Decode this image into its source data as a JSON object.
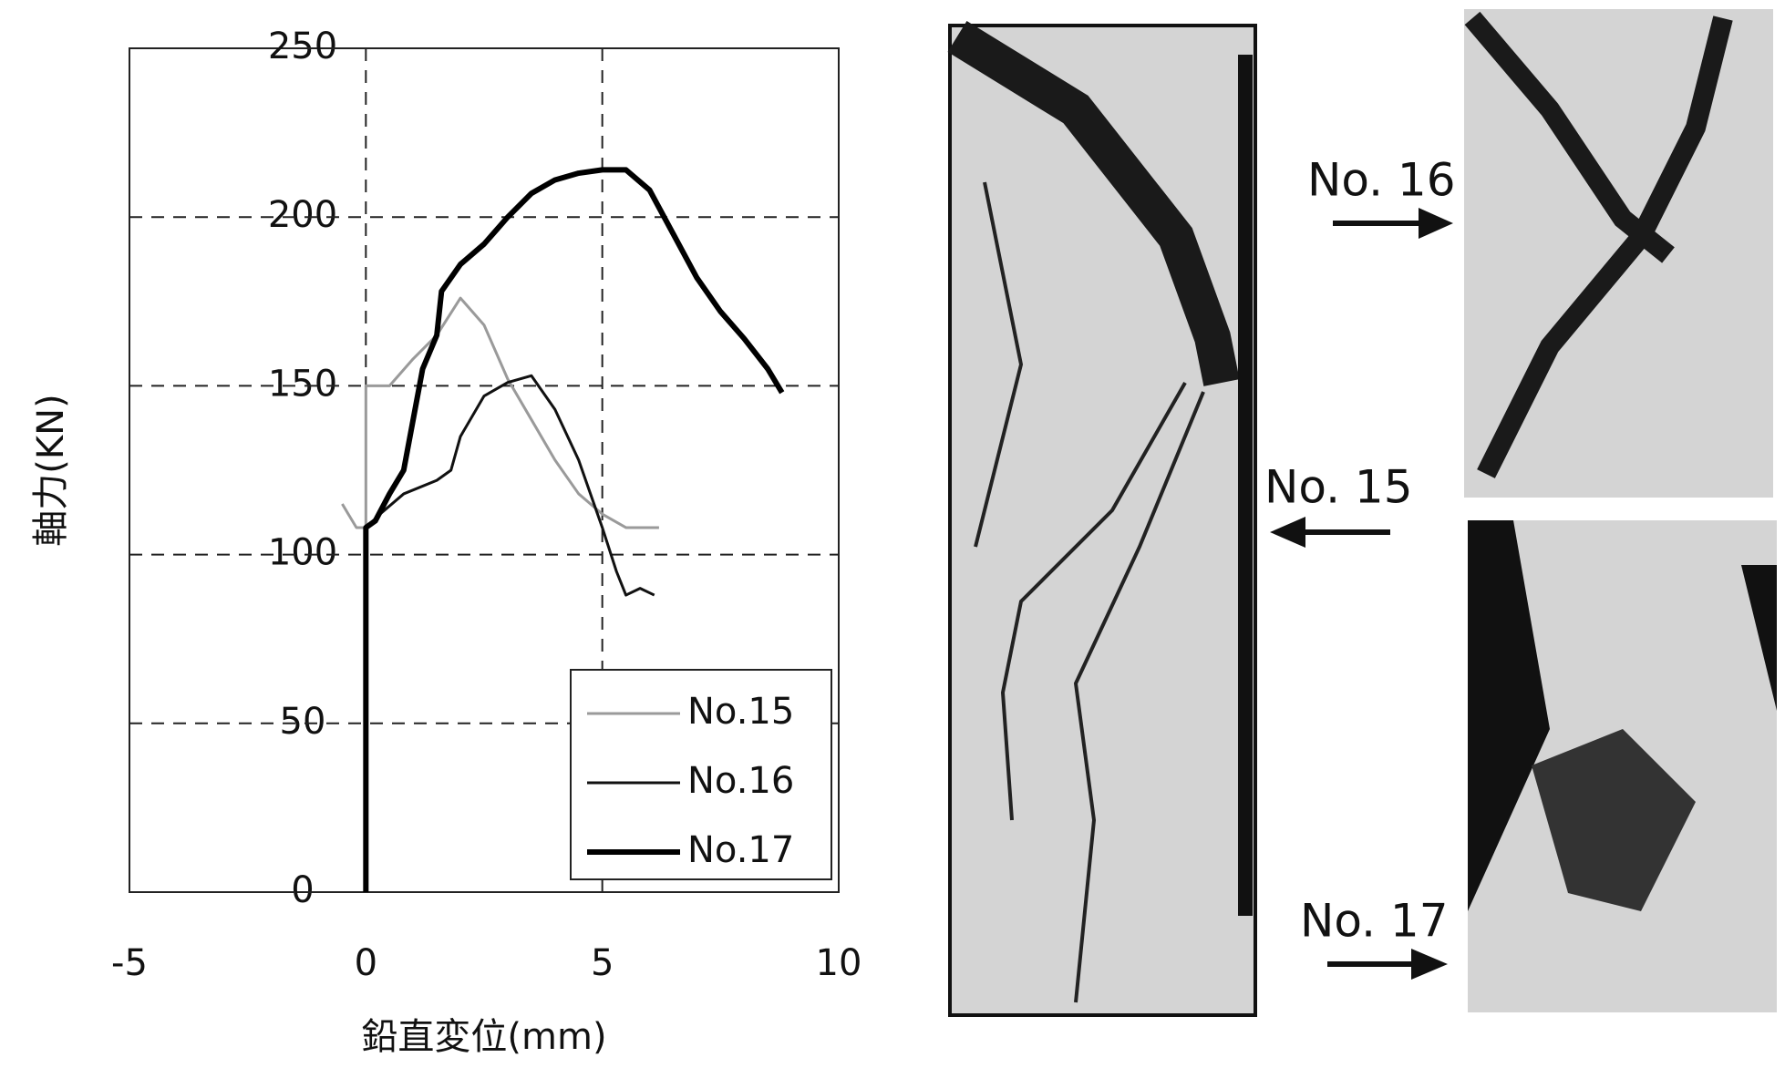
{
  "chart_data": {
    "type": "line",
    "x_label": "鉛直変位(mm)",
    "y_label": "軸力(KN)",
    "xlim": [
      -5,
      10
    ],
    "xticks": [
      -5,
      0,
      5,
      10
    ],
    "ylim": [
      0,
      250
    ],
    "yticks": [
      0,
      50,
      100,
      150,
      200,
      250
    ],
    "grid": true,
    "legend": "lower right",
    "series": [
      {
        "name": "No.15",
        "color": "#9a9a9a",
        "width": 3,
        "x": [
          -0.5,
          -0.2,
          0,
          0,
          0.5,
          1,
          1.5,
          2,
          2.5,
          3,
          3.5,
          4,
          4.5,
          5,
          5.5,
          6.2
        ],
        "values": [
          115,
          108,
          108,
          150,
          150,
          158,
          165,
          176,
          168,
          152,
          140,
          128,
          118,
          112,
          108,
          108
        ]
      },
      {
        "name": "No.16",
        "color": "#111111",
        "width": 3,
        "x": [
          0,
          0,
          0.3,
          0.8,
          1.5,
          1.8,
          2,
          2.5,
          3,
          3.5,
          4,
          4.5,
          5,
          5.3,
          5.5,
          5.8,
          6.1
        ],
        "values": [
          0,
          108,
          112,
          118,
          122,
          125,
          135,
          147,
          151,
          153,
          143,
          128,
          108,
          95,
          88,
          90,
          88
        ]
      },
      {
        "name": "No.17",
        "color": "#000000",
        "width": 6,
        "x": [
          0,
          0,
          0.2,
          0.5,
          0.8,
          1,
          1.2,
          1.5,
          1.6,
          2,
          2.5,
          3,
          3.5,
          4,
          4.5,
          5,
          5.5,
          6,
          6.5,
          7,
          7.5,
          8,
          8.5,
          8.8
        ],
        "values": [
          0,
          108,
          110,
          118,
          125,
          140,
          155,
          165,
          178,
          186,
          192,
          200,
          207,
          211,
          213,
          214,
          214,
          208,
          195,
          182,
          172,
          164,
          155,
          148
        ]
      }
    ]
  },
  "photos": [
    {
      "label": "No. 16"
    },
    {
      "label": "No. 15"
    },
    {
      "label": "No. 17"
    }
  ]
}
